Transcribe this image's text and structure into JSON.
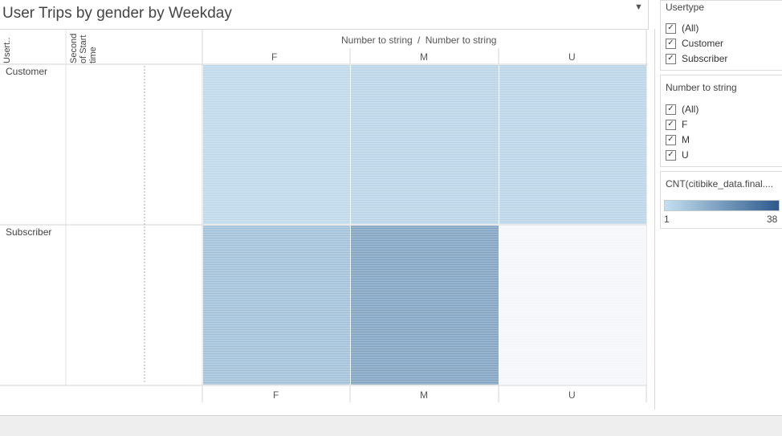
{
  "title": "User Trips by gender by Weekday",
  "icons": {
    "title_dropdown": "dropdown-arrow-icon",
    "checkbox": "checkmark-icon"
  },
  "headers": {
    "row_dim_1": "Usert..",
    "row_dim_2": "Second of Start time",
    "column_title_left": "Number to string",
    "column_title_sep": "/",
    "column_title_right": "Number to string",
    "col_top": [
      "F",
      "M",
      "U"
    ],
    "col_bottom": [
      "F",
      "M",
      "U"
    ],
    "rows": [
      "Customer",
      "Subscriber"
    ]
  },
  "filters": {
    "usertype": {
      "title": "Usertype",
      "items": [
        {
          "label": "(All)",
          "checked": true
        },
        {
          "label": "Customer",
          "checked": true
        },
        {
          "label": "Subscriber",
          "checked": true
        }
      ]
    },
    "gender": {
      "title": "Number to string",
      "items": [
        {
          "label": "(All)",
          "checked": true
        },
        {
          "label": "F",
          "checked": true
        },
        {
          "label": "M",
          "checked": true
        },
        {
          "label": "U",
          "checked": true
        }
      ]
    }
  },
  "legend": {
    "title": "CNT(citibike_data.final....",
    "min": "1",
    "max": "38",
    "color_low": "#c5dff0",
    "color_high": "#2c5a8c"
  },
  "chart_data": {
    "type": "heatmap",
    "title": "User Trips by gender by Weekday",
    "columns": [
      "F",
      "M",
      "U"
    ],
    "row_groups": [
      "Customer",
      "Subscriber"
    ],
    "color_range": [
      1,
      38
    ],
    "color_scale": [
      "#c5dff0",
      "#2c5a8c"
    ],
    "approx_cell_values": {
      "Customer": {
        "F": 3,
        "M": 4,
        "U": 4
      },
      "Subscriber": {
        "F": 10,
        "M": 18,
        "U": 2
      }
    }
  }
}
